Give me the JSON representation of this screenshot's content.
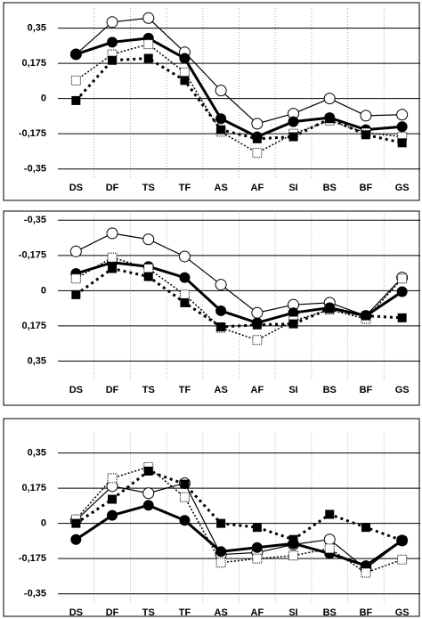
{
  "chart_data": [
    {
      "type": "line",
      "categories": [
        "DS",
        "DF",
        "TS",
        "TF",
        "AS",
        "AF",
        "SI",
        "BS",
        "BF",
        "GS"
      ],
      "ylim": [
        -0.4,
        0.45
      ],
      "invert_y": false,
      "grid": true,
      "yticks": [
        {
          "value": 0.35,
          "label": "0,35"
        },
        {
          "value": 0.175,
          "label": "0,175"
        },
        0,
        {
          "value": -0.175,
          "label": "-0,175"
        },
        {
          "value": -0.35,
          "label": "-0,35"
        }
      ],
      "series": [
        {
          "color": "#000000",
          "marker": "open-circle",
          "line": "thin",
          "values": [
            0.22,
            0.38,
            0.4,
            0.23,
            0.04,
            -0.125,
            -0.075,
            0,
            -0.085,
            -0.08
          ]
        },
        {
          "color": "#000000",
          "marker": "filled-circle",
          "line": "thick",
          "values": [
            0.22,
            0.28,
            0.3,
            0.2,
            -0.1,
            -0.19,
            -0.115,
            -0.095,
            -0.155,
            -0.14
          ]
        },
        {
          "color": "#000000",
          "marker": "open-square",
          "line": "dotted",
          "values": [
            0.09,
            0.22,
            0.27,
            0.13,
            -0.165,
            -0.27,
            -0.175,
            -0.11,
            -0.17,
            -0.19
          ]
        },
        {
          "color": "#000000",
          "marker": "filled-square",
          "line": "thick-dotted",
          "values": [
            -0.01,
            0.19,
            0.2,
            0.09,
            -0.155,
            -0.2,
            -0.19,
            -0.1,
            -0.18,
            -0.22
          ]
        }
      ]
    },
    {
      "type": "line",
      "categories": [
        "DS",
        "DF",
        "TS",
        "TF",
        "AS",
        "AF",
        "SI",
        "BS",
        "BF",
        "GS"
      ],
      "ylim": [
        -0.4,
        0.45
      ],
      "invert_y": true,
      "grid": true,
      "yticks": [
        {
          "value": -0.35,
          "label": "-0,35"
        },
        {
          "value": -0.175,
          "label": "-0,175"
        },
        0,
        {
          "value": 0.175,
          "label": "0,175"
        },
        {
          "value": 0.35,
          "label": "0,35"
        }
      ],
      "series": [
        {
          "color": "#000000",
          "marker": "open-circle",
          "line": "thin",
          "values": [
            -0.195,
            -0.285,
            -0.255,
            -0.17,
            -0.03,
            0.11,
            0.07,
            0.06,
            0.125,
            -0.065
          ]
        },
        {
          "color": "#000000",
          "marker": "filled-circle",
          "line": "thick",
          "values": [
            -0.085,
            -0.14,
            -0.12,
            -0.065,
            0.1,
            0.16,
            0.11,
            0.085,
            0.125,
            0.005
          ]
        },
        {
          "color": "#000000",
          "marker": "open-square",
          "line": "dotted",
          "values": [
            -0.06,
            -0.165,
            -0.11,
            0.02,
            0.185,
            0.245,
            0.15,
            0.095,
            0.14,
            -0.06
          ]
        },
        {
          "color": "#000000",
          "marker": "filled-square",
          "line": "thick-dotted",
          "values": [
            0.02,
            -0.11,
            -0.07,
            0.06,
            0.18,
            0.17,
            0.165,
            0.09,
            0.125,
            0.135
          ]
        }
      ]
    },
    {
      "type": "line",
      "categories": [
        "DS",
        "DF",
        "TS",
        "TF",
        "AS",
        "AF",
        "SI",
        "BS",
        "BF",
        "GS"
      ],
      "ylim": [
        -0.4,
        0.45
      ],
      "invert_y": false,
      "grid": true,
      "yticks": [
        {
          "value": 0.35,
          "label": "0,35"
        },
        {
          "value": 0.175,
          "label": "0,175"
        },
        0,
        {
          "value": -0.175,
          "label": "-0,175"
        },
        {
          "value": -0.35,
          "label": "-0,35"
        }
      ],
      "series": [
        {
          "color": "#000000",
          "marker": "open-circle",
          "line": "thin",
          "values": [
            0.015,
            0.185,
            0.15,
            0.2,
            -0.155,
            -0.145,
            -0.105,
            -0.08,
            -0.225,
            -0.085
          ]
        },
        {
          "color": "#000000",
          "marker": "filled-circle",
          "line": "thick",
          "values": [
            -0.08,
            0.04,
            0.09,
            0.015,
            -0.14,
            -0.12,
            -0.1,
            -0.15,
            -0.21,
            -0.085
          ]
        },
        {
          "color": "#000000",
          "marker": "open-square",
          "line": "dotted",
          "values": [
            0.02,
            0.225,
            0.28,
            0.13,
            -0.195,
            -0.175,
            -0.16,
            -0.125,
            -0.245,
            -0.18
          ]
        },
        {
          "color": "#000000",
          "marker": "filled-square",
          "line": "thick-dotted",
          "values": [
            0,
            0.12,
            0.26,
            0.195,
            0,
            -0.02,
            -0.08,
            0.045,
            -0.02,
            -0.085
          ]
        }
      ]
    }
  ]
}
